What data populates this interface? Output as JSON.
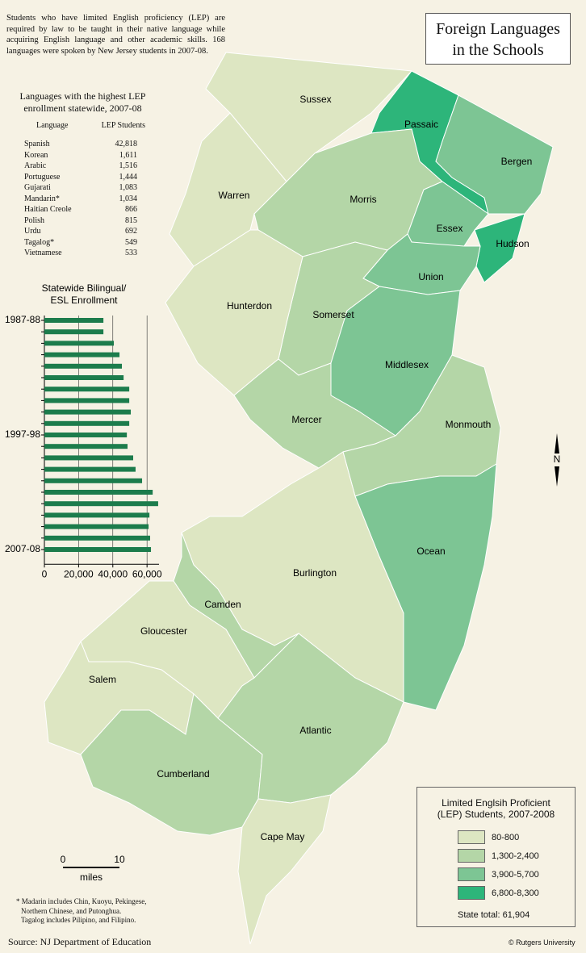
{
  "title": [
    "Foreign Languages",
    "in the Schools"
  ],
  "intro": "Students who have limited English proficiency (LEP) are required by law to be taught in their native language while acquiring English language and other academic skills.  168 languages were spoken by New Jersey students in 2007-08.",
  "table": {
    "title": [
      "Languages with the highest LEP",
      "enrollment statewide, 2007-08"
    ],
    "headers": [
      "Language",
      "LEP Students"
    ],
    "rows": [
      [
        "Spanish",
        "42,818"
      ],
      [
        "Korean",
        "1,611"
      ],
      [
        "Arabic",
        "1,516"
      ],
      [
        "Portuguese",
        "1,444"
      ],
      [
        "Gujarati",
        "1,083"
      ],
      [
        "Mandarin*",
        "1,034"
      ],
      [
        "Haitian Creole",
        "866"
      ],
      [
        "Polish",
        "815"
      ],
      [
        "Urdu",
        "692"
      ],
      [
        "Tagalog*",
        "549"
      ],
      [
        "Vietnamese",
        "533"
      ]
    ]
  },
  "chart_data": {
    "type": "bar",
    "orientation": "horizontal",
    "title": [
      "Statewide Bilingual/",
      "ESL Enrollment"
    ],
    "categories": [
      "1987-88",
      null,
      null,
      null,
      null,
      null,
      null,
      null,
      null,
      null,
      "1997-98",
      null,
      null,
      null,
      null,
      null,
      null,
      null,
      null,
      null,
      "2007-08"
    ],
    "values": [
      34500,
      34500,
      40600,
      43900,
      45300,
      46300,
      49600,
      49600,
      50500,
      49600,
      48200,
      48600,
      51900,
      53300,
      57100,
      63300,
      66500,
      61400,
      60900,
      61800,
      62300
    ],
    "color": "#1c7c4c",
    "xlim": [
      0,
      67000
    ],
    "xticks": [
      0,
      {
        "value": 20000,
        "label": "20,000"
      },
      {
        "value": 40000,
        "label": "40,000"
      },
      {
        "value": 60000,
        "label": "60,000"
      }
    ],
    "grid": true
  },
  "counties": [
    {
      "name": "Sussex",
      "color": "#dde6c2"
    },
    {
      "name": "Passaic",
      "color": "#2db57a"
    },
    {
      "name": "Bergen",
      "color": "#7dc594"
    },
    {
      "name": "Warren",
      "color": "#dde6c2"
    },
    {
      "name": "Morris",
      "color": "#b4d6a7"
    },
    {
      "name": "Essex",
      "color": "#7dc594"
    },
    {
      "name": "Hudson",
      "color": "#2db57a"
    },
    {
      "name": "Union",
      "color": "#7dc594"
    },
    {
      "name": "Somerset",
      "color": "#b4d6a7"
    },
    {
      "name": "Middlesex",
      "color": "#7dc594"
    },
    {
      "name": "Hunterdon",
      "color": "#dde6c2"
    },
    {
      "name": "Mercer",
      "color": "#b4d6a7"
    },
    {
      "name": "Monmouth",
      "color": "#b4d6a7"
    },
    {
      "name": "Ocean",
      "color": "#7dc594"
    },
    {
      "name": "Burlington",
      "color": "#dde6c2"
    },
    {
      "name": "Camden",
      "color": "#b4d6a7"
    },
    {
      "name": "Gloucester",
      "color": "#dde6c2"
    },
    {
      "name": "Salem",
      "color": "#dde6c2"
    },
    {
      "name": "Cumberland",
      "color": "#b4d6a7"
    },
    {
      "name": "Atlantic",
      "color": "#b4d6a7"
    },
    {
      "name": "Cape May",
      "color": "#dde6c2"
    }
  ],
  "legend": {
    "title": [
      "Limited Englsih Proficient",
      "(LEP) Students, 2007-2008"
    ],
    "items": [
      {
        "label": "80-800",
        "color": "#dde6c2"
      },
      {
        "label": "1,300-2,400",
        "color": "#b4d6a7"
      },
      {
        "label": "3,900-5,700",
        "color": "#7dc594"
      },
      {
        "label": "6,800-8,300",
        "color": "#2db57a"
      }
    ],
    "total": "State total: 61,904"
  },
  "scale": {
    "ticks": [
      "0",
      "10"
    ],
    "unit": "miles"
  },
  "north": "N",
  "footnote": [
    "* Madarin includes Chin, Kuoyu, Pekingese,",
    "Northern Chinese, and Putonghua.",
    "Tagalog includes Pilipino, and Filipino."
  ],
  "source": "Source: NJ Department of Education",
  "credit": "© Rutgers University"
}
